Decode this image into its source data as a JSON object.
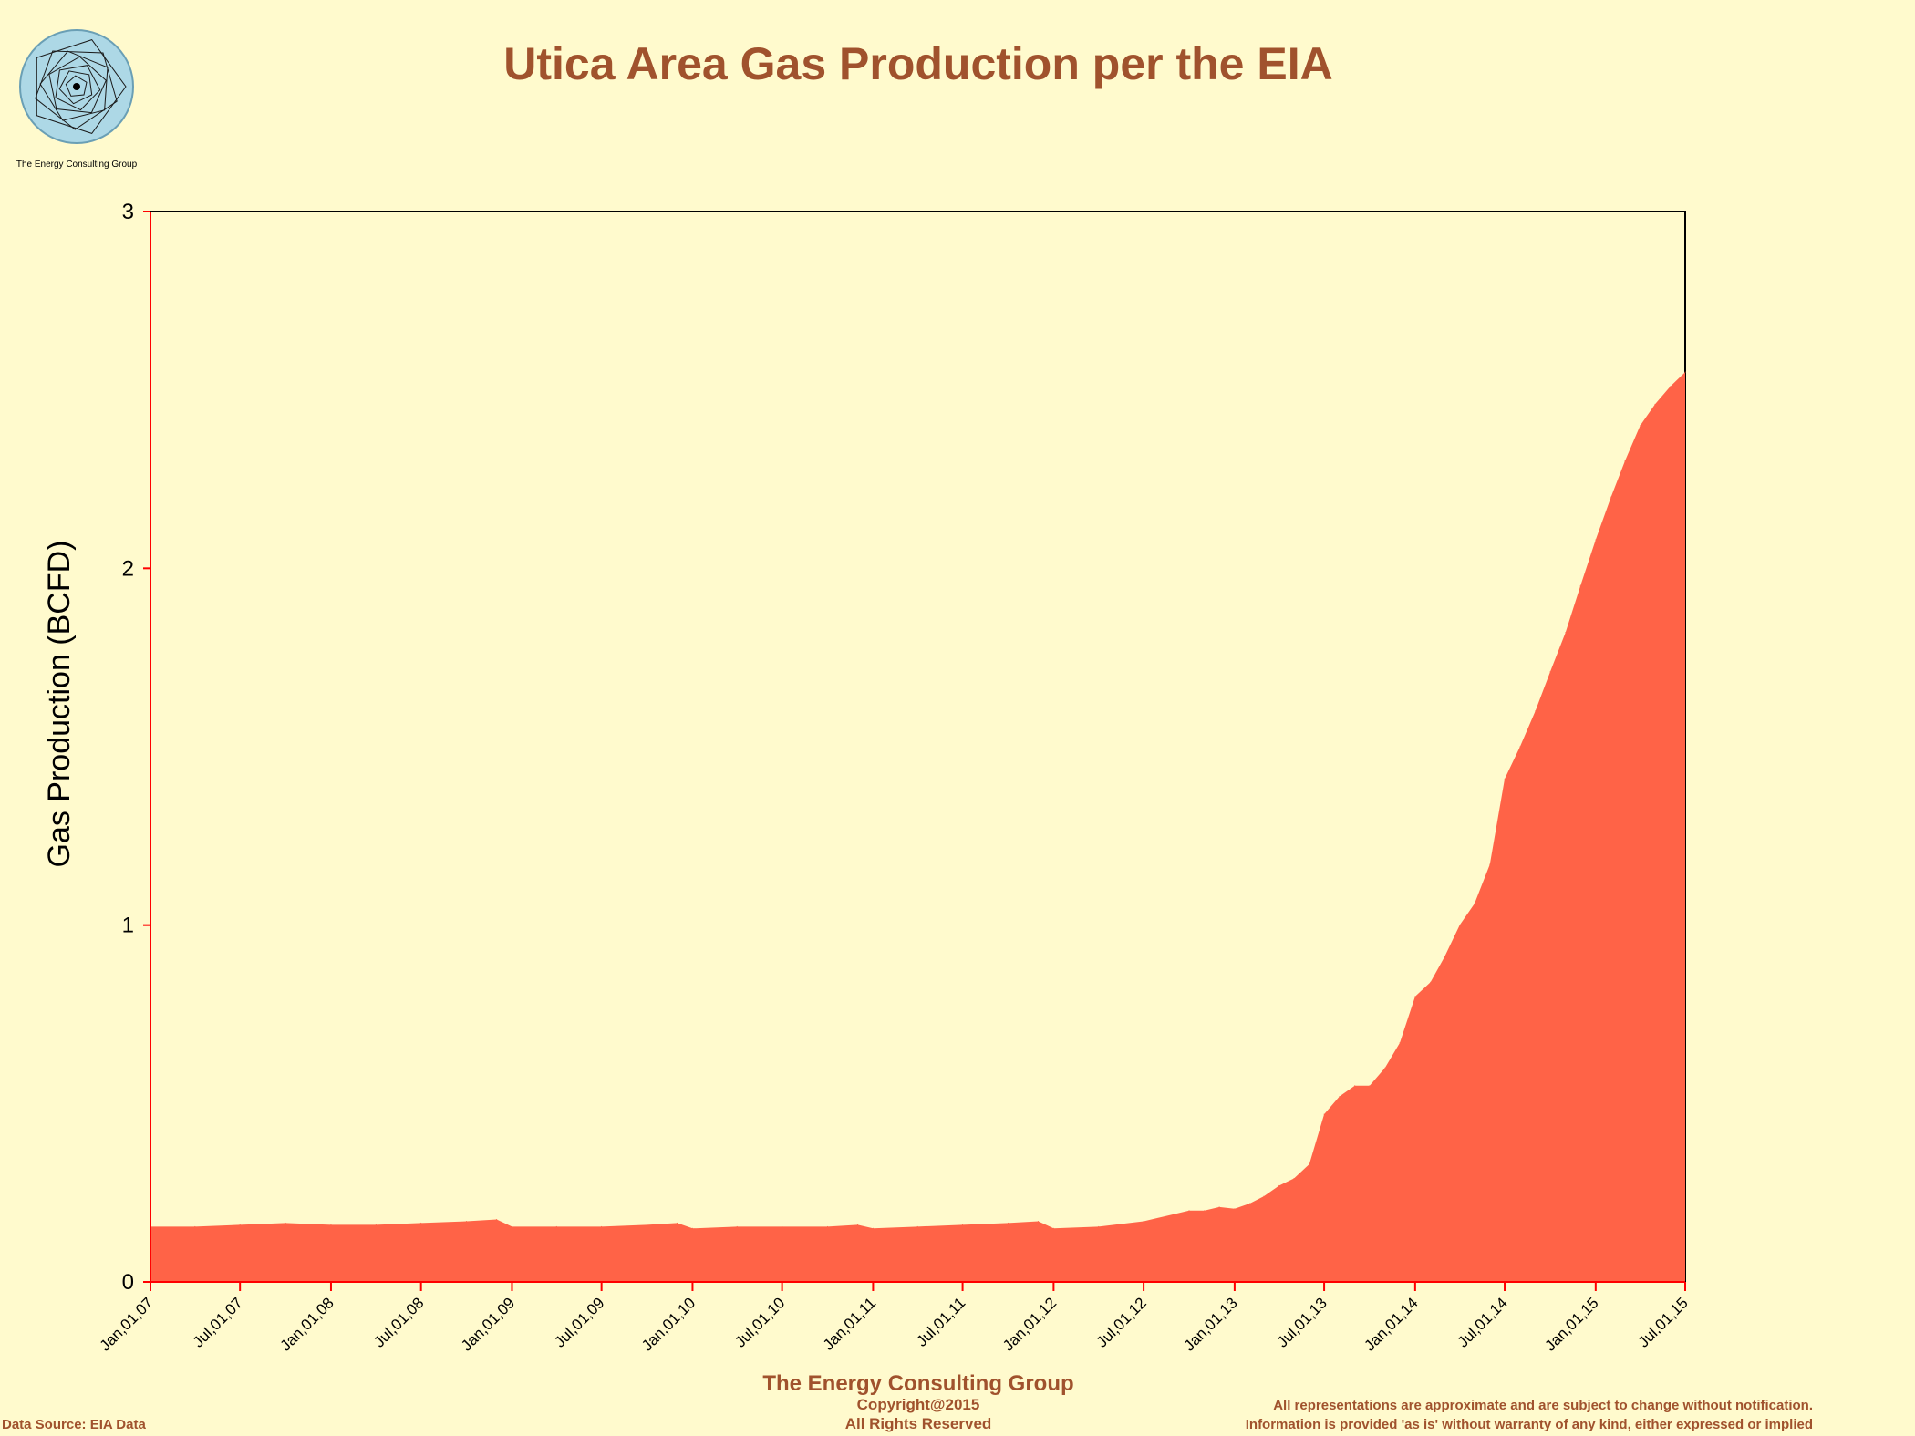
{
  "logo": {
    "caption": "The Energy Consulting Group"
  },
  "footer": {
    "company": "The Energy Consulting Group",
    "copyright": "Copyright@2015",
    "rights": "All Rights Reserved",
    "source": "Data Source: EIA Data",
    "disclaimer_1": "All representations are approximate and are subject to change without notification.",
    "disclaimer_2": "Information is provided 'as is' without warranty of any kind, either expressed or implied"
  },
  "colors": {
    "background": "#FFFACD",
    "fill": "#FF6347",
    "title": "#A0522D",
    "axis": "#FF0000",
    "frame": "#000000"
  },
  "chart_data": {
    "type": "area",
    "title": "Utica Area Gas Production per the EIA",
    "ylabel": "Gas Production (BCFD)",
    "xlabel": "",
    "ylim": [
      0,
      3
    ],
    "yticks": [
      "0",
      "1",
      "2",
      "3"
    ],
    "xlim": [
      "2007-01-01",
      "2015-07-01"
    ],
    "xticks": [
      {
        "date": "2007-01-01",
        "label": "Jan,01,07"
      },
      {
        "date": "2007-07-01",
        "label": "Jul,01,07"
      },
      {
        "date": "2008-01-01",
        "label": "Jan,01,08"
      },
      {
        "date": "2008-07-01",
        "label": "Jul,01,08"
      },
      {
        "date": "2009-01-01",
        "label": "Jan,01,09"
      },
      {
        "date": "2009-07-01",
        "label": "Jul,01,09"
      },
      {
        "date": "2010-01-01",
        "label": "Jan,01,10"
      },
      {
        "date": "2010-07-01",
        "label": "Jul,01,10"
      },
      {
        "date": "2011-01-01",
        "label": "Jan,01,11"
      },
      {
        "date": "2011-07-01",
        "label": "Jul,01,11"
      },
      {
        "date": "2012-01-01",
        "label": "Jan,01,12"
      },
      {
        "date": "2012-07-01",
        "label": "Jul,01,12"
      },
      {
        "date": "2013-01-01",
        "label": "Jan,01,13"
      },
      {
        "date": "2013-07-01",
        "label": "Jul,01,13"
      },
      {
        "date": "2014-01-01",
        "label": "Jan,01,14"
      },
      {
        "date": "2014-07-01",
        "label": "Jul,01,14"
      },
      {
        "date": "2015-01-01",
        "label": "Jan,01,15"
      },
      {
        "date": "2015-07-01",
        "label": "Jul,01,15"
      }
    ],
    "grid": false,
    "legend": "none",
    "series": [
      {
        "x": [
          "2007-01-01",
          "2007-04-01",
          "2007-07-01",
          "2007-10-01",
          "2008-01-01",
          "2008-04-01",
          "2008-07-01",
          "2008-10-01",
          "2008-12-01",
          "2009-01-01",
          "2009-04-01",
          "2009-07-01",
          "2009-10-01",
          "2009-12-01",
          "2010-01-01",
          "2010-04-01",
          "2010-07-01",
          "2010-10-01",
          "2010-12-01",
          "2011-01-01",
          "2011-04-01",
          "2011-07-01",
          "2011-10-01",
          "2011-12-01",
          "2012-01-01",
          "2012-04-01",
          "2012-07-01",
          "2012-09-01",
          "2012-10-01",
          "2012-11-01",
          "2012-12-01",
          "2013-01-01",
          "2013-02-01",
          "2013-03-01",
          "2013-04-01",
          "2013-05-01",
          "2013-06-01",
          "2013-07-01",
          "2013-08-01",
          "2013-09-01",
          "2013-10-01",
          "2013-11-01",
          "2013-12-01",
          "2014-01-01",
          "2014-02-01",
          "2014-03-01",
          "2014-04-01",
          "2014-05-01",
          "2014-06-01",
          "2014-07-01",
          "2014-08-01",
          "2014-09-01",
          "2014-10-01",
          "2014-11-01",
          "2014-12-01",
          "2015-01-01",
          "2015-02-01",
          "2015-03-01",
          "2015-04-01",
          "2015-05-01",
          "2015-06-01",
          "2015-07-01"
        ],
        "values": [
          0.155,
          0.155,
          0.16,
          0.165,
          0.16,
          0.16,
          0.165,
          0.17,
          0.175,
          0.155,
          0.155,
          0.155,
          0.16,
          0.165,
          0.15,
          0.155,
          0.155,
          0.155,
          0.16,
          0.15,
          0.155,
          0.16,
          0.165,
          0.17,
          0.15,
          0.155,
          0.17,
          0.19,
          0.2,
          0.2,
          0.21,
          0.205,
          0.22,
          0.24,
          0.27,
          0.29,
          0.33,
          0.47,
          0.52,
          0.55,
          0.55,
          0.6,
          0.67,
          0.8,
          0.84,
          0.91,
          1.0,
          1.06,
          1.17,
          1.41,
          1.5,
          1.6,
          1.71,
          1.82,
          1.95,
          2.08,
          2.2,
          2.3,
          2.4,
          2.46,
          2.51,
          2.55
        ]
      }
    ]
  }
}
